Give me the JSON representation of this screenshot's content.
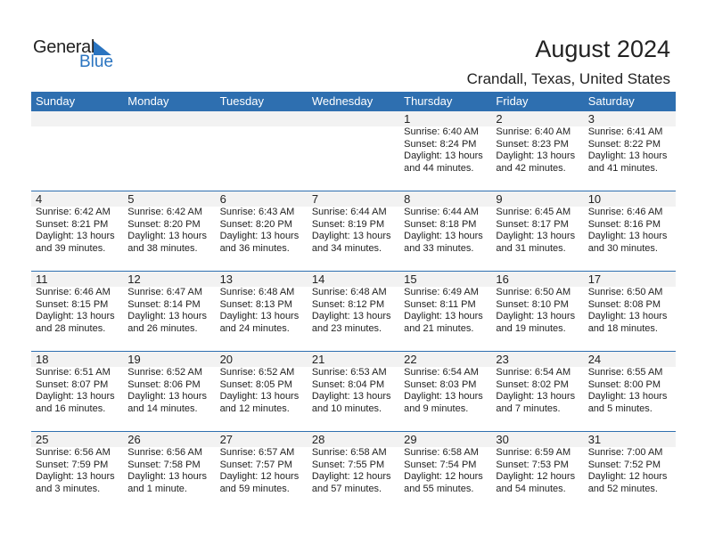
{
  "logo": {
    "general": "General",
    "blue": "Blue"
  },
  "title": "August 2024",
  "location": "Crandall, Texas, United States",
  "colors": {
    "header": "#2e6fb0",
    "accent": "#2a74c0"
  },
  "days": [
    "Sunday",
    "Monday",
    "Tuesday",
    "Wednesday",
    "Thursday",
    "Friday",
    "Saturday"
  ],
  "weeks": [
    [
      null,
      null,
      null,
      null,
      {
        "d": "1",
        "sr": "Sunrise: 6:40 AM",
        "ss": "Sunset: 8:24 PM",
        "dl": "Daylight: 13 hours",
        "dm": "and 44 minutes."
      },
      {
        "d": "2",
        "sr": "Sunrise: 6:40 AM",
        "ss": "Sunset: 8:23 PM",
        "dl": "Daylight: 13 hours",
        "dm": "and 42 minutes."
      },
      {
        "d": "3",
        "sr": "Sunrise: 6:41 AM",
        "ss": "Sunset: 8:22 PM",
        "dl": "Daylight: 13 hours",
        "dm": "and 41 minutes."
      }
    ],
    [
      {
        "d": "4",
        "sr": "Sunrise: 6:42 AM",
        "ss": "Sunset: 8:21 PM",
        "dl": "Daylight: 13 hours",
        "dm": "and 39 minutes."
      },
      {
        "d": "5",
        "sr": "Sunrise: 6:42 AM",
        "ss": "Sunset: 8:20 PM",
        "dl": "Daylight: 13 hours",
        "dm": "and 38 minutes."
      },
      {
        "d": "6",
        "sr": "Sunrise: 6:43 AM",
        "ss": "Sunset: 8:20 PM",
        "dl": "Daylight: 13 hours",
        "dm": "and 36 minutes."
      },
      {
        "d": "7",
        "sr": "Sunrise: 6:44 AM",
        "ss": "Sunset: 8:19 PM",
        "dl": "Daylight: 13 hours",
        "dm": "and 34 minutes."
      },
      {
        "d": "8",
        "sr": "Sunrise: 6:44 AM",
        "ss": "Sunset: 8:18 PM",
        "dl": "Daylight: 13 hours",
        "dm": "and 33 minutes."
      },
      {
        "d": "9",
        "sr": "Sunrise: 6:45 AM",
        "ss": "Sunset: 8:17 PM",
        "dl": "Daylight: 13 hours",
        "dm": "and 31 minutes."
      },
      {
        "d": "10",
        "sr": "Sunrise: 6:46 AM",
        "ss": "Sunset: 8:16 PM",
        "dl": "Daylight: 13 hours",
        "dm": "and 30 minutes."
      }
    ],
    [
      {
        "d": "11",
        "sr": "Sunrise: 6:46 AM",
        "ss": "Sunset: 8:15 PM",
        "dl": "Daylight: 13 hours",
        "dm": "and 28 minutes."
      },
      {
        "d": "12",
        "sr": "Sunrise: 6:47 AM",
        "ss": "Sunset: 8:14 PM",
        "dl": "Daylight: 13 hours",
        "dm": "and 26 minutes."
      },
      {
        "d": "13",
        "sr": "Sunrise: 6:48 AM",
        "ss": "Sunset: 8:13 PM",
        "dl": "Daylight: 13 hours",
        "dm": "and 24 minutes."
      },
      {
        "d": "14",
        "sr": "Sunrise: 6:48 AM",
        "ss": "Sunset: 8:12 PM",
        "dl": "Daylight: 13 hours",
        "dm": "and 23 minutes."
      },
      {
        "d": "15",
        "sr": "Sunrise: 6:49 AM",
        "ss": "Sunset: 8:11 PM",
        "dl": "Daylight: 13 hours",
        "dm": "and 21 minutes."
      },
      {
        "d": "16",
        "sr": "Sunrise: 6:50 AM",
        "ss": "Sunset: 8:10 PM",
        "dl": "Daylight: 13 hours",
        "dm": "and 19 minutes."
      },
      {
        "d": "17",
        "sr": "Sunrise: 6:50 AM",
        "ss": "Sunset: 8:08 PM",
        "dl": "Daylight: 13 hours",
        "dm": "and 18 minutes."
      }
    ],
    [
      {
        "d": "18",
        "sr": "Sunrise: 6:51 AM",
        "ss": "Sunset: 8:07 PM",
        "dl": "Daylight: 13 hours",
        "dm": "and 16 minutes."
      },
      {
        "d": "19",
        "sr": "Sunrise: 6:52 AM",
        "ss": "Sunset: 8:06 PM",
        "dl": "Daylight: 13 hours",
        "dm": "and 14 minutes."
      },
      {
        "d": "20",
        "sr": "Sunrise: 6:52 AM",
        "ss": "Sunset: 8:05 PM",
        "dl": "Daylight: 13 hours",
        "dm": "and 12 minutes."
      },
      {
        "d": "21",
        "sr": "Sunrise: 6:53 AM",
        "ss": "Sunset: 8:04 PM",
        "dl": "Daylight: 13 hours",
        "dm": "and 10 minutes."
      },
      {
        "d": "22",
        "sr": "Sunrise: 6:54 AM",
        "ss": "Sunset: 8:03 PM",
        "dl": "Daylight: 13 hours",
        "dm": "and 9 minutes."
      },
      {
        "d": "23",
        "sr": "Sunrise: 6:54 AM",
        "ss": "Sunset: 8:02 PM",
        "dl": "Daylight: 13 hours",
        "dm": "and 7 minutes."
      },
      {
        "d": "24",
        "sr": "Sunrise: 6:55 AM",
        "ss": "Sunset: 8:00 PM",
        "dl": "Daylight: 13 hours",
        "dm": "and 5 minutes."
      }
    ],
    [
      {
        "d": "25",
        "sr": "Sunrise: 6:56 AM",
        "ss": "Sunset: 7:59 PM",
        "dl": "Daylight: 13 hours",
        "dm": "and 3 minutes."
      },
      {
        "d": "26",
        "sr": "Sunrise: 6:56 AM",
        "ss": "Sunset: 7:58 PM",
        "dl": "Daylight: 13 hours",
        "dm": "and 1 minute."
      },
      {
        "d": "27",
        "sr": "Sunrise: 6:57 AM",
        "ss": "Sunset: 7:57 PM",
        "dl": "Daylight: 12 hours",
        "dm": "and 59 minutes."
      },
      {
        "d": "28",
        "sr": "Sunrise: 6:58 AM",
        "ss": "Sunset: 7:55 PM",
        "dl": "Daylight: 12 hours",
        "dm": "and 57 minutes."
      },
      {
        "d": "29",
        "sr": "Sunrise: 6:58 AM",
        "ss": "Sunset: 7:54 PM",
        "dl": "Daylight: 12 hours",
        "dm": "and 55 minutes."
      },
      {
        "d": "30",
        "sr": "Sunrise: 6:59 AM",
        "ss": "Sunset: 7:53 PM",
        "dl": "Daylight: 12 hours",
        "dm": "and 54 minutes."
      },
      {
        "d": "31",
        "sr": "Sunrise: 7:00 AM",
        "ss": "Sunset: 7:52 PM",
        "dl": "Daylight: 12 hours",
        "dm": "and 52 minutes."
      }
    ]
  ]
}
